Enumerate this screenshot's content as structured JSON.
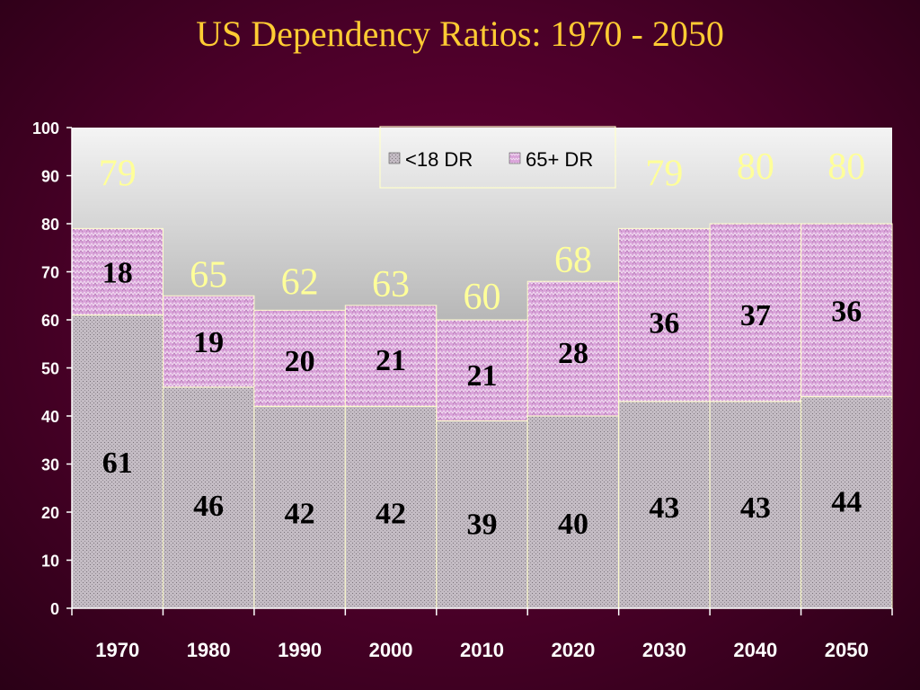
{
  "title": "US Dependency Ratios: 1970 - 2050",
  "colors": {
    "background": "#5a0030",
    "title": "#ffcc33",
    "total_label": "#ffff99",
    "under18_fill": "#c4bcc4",
    "over65_fill": "#d79ed7",
    "bar_outline": "#ffffcc"
  },
  "chart_data": {
    "type": "bar",
    "stacked": true,
    "categories": [
      "1970",
      "1980",
      "1990",
      "2000",
      "2010",
      "2020",
      "2030",
      "2040",
      "2050"
    ],
    "series": [
      {
        "name": "<18 DR",
        "values": [
          61,
          46,
          42,
          42,
          39,
          40,
          43,
          43,
          44
        ]
      },
      {
        "name": "65+ DR",
        "values": [
          18,
          19,
          20,
          21,
          21,
          28,
          36,
          37,
          36
        ]
      }
    ],
    "totals": [
      79,
      65,
      62,
      63,
      60,
      68,
      79,
      80,
      80
    ],
    "ylim": [
      0,
      100
    ],
    "yticks": [
      0,
      10,
      20,
      30,
      40,
      50,
      60,
      70,
      80,
      90,
      100
    ],
    "legend": "top-center",
    "grid": false
  }
}
